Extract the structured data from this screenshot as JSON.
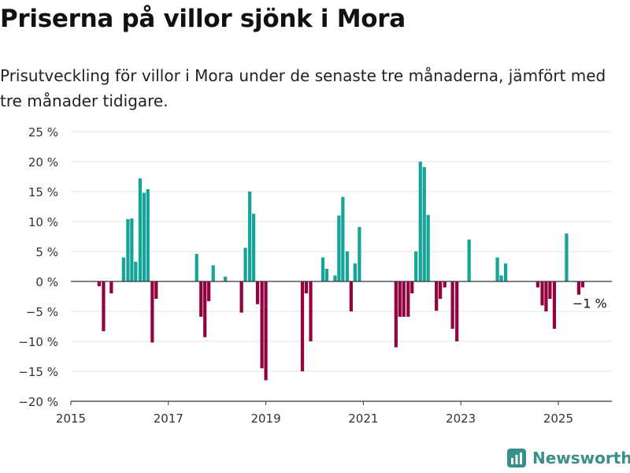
{
  "header": {
    "title": "Priserna på villor sjönk i Mora",
    "subtitle": "Prisutveckling för villor i Mora under de senaste tre månaderna, jämfört med tre månader tidigare."
  },
  "brand": {
    "name": "Newsworthy",
    "color": "#3a8f8a"
  },
  "chart_data": {
    "type": "bar",
    "xlim": [
      2015.0,
      2026.1
    ],
    "ylim": [
      -20,
      25
    ],
    "yticks": [
      25,
      20,
      15,
      10,
      5,
      0,
      -5,
      -10,
      -15,
      -20
    ],
    "ytick_labels": [
      "25 %",
      "20 %",
      "15 %",
      "10 %",
      "5 %",
      "0 %",
      "−5 %",
      "−10 %",
      "−15 %",
      "−20 %"
    ],
    "xticks": [
      2015,
      2017,
      2019,
      2021,
      2023,
      2025
    ],
    "xtick_labels": [
      "2015",
      "2017",
      "2019",
      "2021",
      "2023",
      "2025"
    ],
    "grid": true,
    "colors": {
      "positive": "#16a39a",
      "negative": "#93033f"
    },
    "annotation": {
      "label": "−1 %",
      "x": 2025.58,
      "y": -1
    },
    "x": [
      2015.58,
      2015.67,
      2015.83,
      2016.08,
      2016.17,
      2016.25,
      2016.33,
      2016.42,
      2016.5,
      2016.58,
      2016.67,
      2016.75,
      2017.58,
      2017.67,
      2017.75,
      2017.83,
      2017.92,
      2018.17,
      2018.5,
      2018.58,
      2018.67,
      2018.75,
      2018.83,
      2018.92,
      2019.0,
      2019.75,
      2019.83,
      2019.92,
      2020.17,
      2020.25,
      2020.42,
      2020.5,
      2020.58,
      2020.67,
      2020.75,
      2020.83,
      2020.92,
      2021.67,
      2021.75,
      2021.83,
      2021.92,
      2022.0,
      2022.08,
      2022.17,
      2022.25,
      2022.33,
      2022.5,
      2022.58,
      2022.67,
      2022.83,
      2022.92,
      2023.17,
      2023.75,
      2023.83,
      2023.92,
      2024.58,
      2024.67,
      2024.75,
      2024.83,
      2024.92,
      2025.17,
      2025.42,
      2025.5
    ],
    "values": [
      -0.8,
      -8.3,
      -2,
      4,
      10.4,
      10.5,
      3.3,
      17.2,
      14.8,
      15.4,
      -10.2,
      -2.9,
      4.6,
      -5.9,
      -9.3,
      -3.3,
      2.7,
      0.8,
      -5.2,
      5.6,
      15,
      11.3,
      -3.8,
      -14.5,
      -16.5,
      -15,
      -2,
      -10,
      4,
      2.1,
      1,
      11,
      14.1,
      5,
      -5,
      3,
      9.1,
      -11,
      -5.9,
      -5.9,
      -5.9,
      -2,
      5,
      20,
      19.1,
      11.1,
      -4.9,
      -2.9,
      -1,
      -7.9,
      -10,
      7,
      4,
      1,
      3,
      -1,
      -4,
      -5,
      -2.9,
      -7.9,
      8,
      -2.2,
      -1
    ]
  }
}
